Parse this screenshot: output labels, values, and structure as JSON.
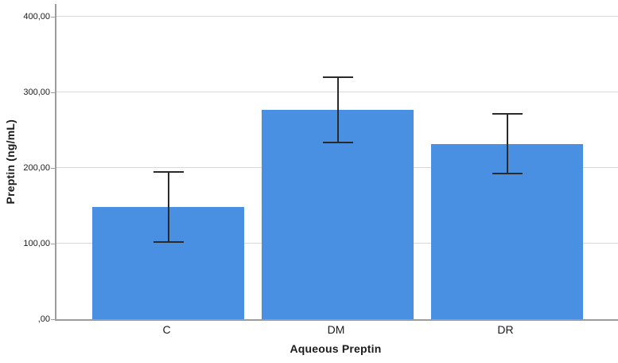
{
  "chart_data": {
    "type": "bar",
    "title": "",
    "categories": [
      "C",
      "DM",
      "DR"
    ],
    "values": [
      148.5,
      277,
      232
    ],
    "error_bars": {
      "lower": [
        102,
        234,
        193
      ],
      "upper": [
        195,
        320.5,
        272
      ]
    },
    "xlabel": "Aqueous Preptin",
    "ylabel": "Preptin (ng/mL)",
    "ylim": [
      0,
      400
    ],
    "ytick_step": 100,
    "ytick_labels": [
      "400,00",
      "300,00",
      "200,00",
      "100,00",
      ",00"
    ],
    "grid": true,
    "legend": "none",
    "bar_color": "#4a90e2",
    "error_bar_color": "#2a2a2a",
    "gridline_color": "#d9d9d9",
    "axis_color": "#9c9c9c",
    "text_color": "#1b1b1b"
  }
}
